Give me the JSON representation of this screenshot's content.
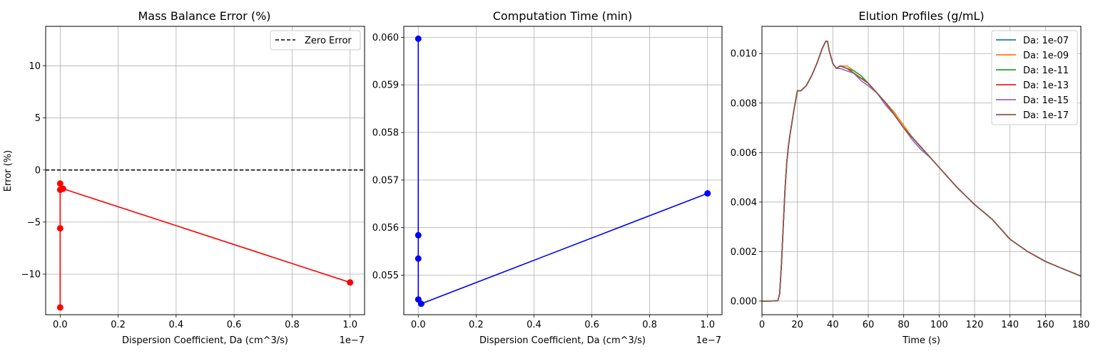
{
  "chart_data": [
    {
      "type": "line",
      "title": "Mass Balance Error (%)",
      "xlabel": "Dispersion Coefficient, Da (cm^3/s)",
      "ylabel": "Error (%)",
      "x_offset_label": "1e−7",
      "xlim": [
        -0.05,
        1.05
      ],
      "ylim": [
        -13.9,
        13.8
      ],
      "xticks": [
        0.0,
        0.2,
        0.4,
        0.6,
        0.8,
        1.0
      ],
      "xtick_labels": [
        "0.0",
        "0.2",
        "0.4",
        "0.6",
        "0.8",
        "1.0"
      ],
      "yticks": [
        -10,
        -5,
        0,
        5,
        10
      ],
      "ytick_labels": [
        "−10",
        "−5",
        "0",
        "5",
        "10"
      ],
      "grid": true,
      "legend": {
        "position": "upper-right",
        "entries": [
          "Zero Error"
        ]
      },
      "series": [
        {
          "color": "#ff0000",
          "marker": "circle",
          "x": [
            1.0,
            0.01,
            0.0001,
            1e-06,
            1e-08,
            1e-10
          ],
          "y": [
            -10.8,
            -1.8,
            -1.9,
            -1.3,
            -5.6,
            -13.2
          ]
        }
      ],
      "reference_line": {
        "name": "Zero Error",
        "y": 0,
        "color": "#000000",
        "style": "dashed"
      }
    },
    {
      "type": "line",
      "title": "Computation Time (min)",
      "xlabel": "Dispersion Coefficient, Da (cm^3/s)",
      "ylabel": "",
      "x_offset_label": "1e−7",
      "xlim": [
        -0.05,
        1.05
      ],
      "ylim": [
        0.05417,
        0.06023
      ],
      "xticks": [
        0.0,
        0.2,
        0.4,
        0.6,
        0.8,
        1.0
      ],
      "xtick_labels": [
        "0.0",
        "0.2",
        "0.4",
        "0.6",
        "0.8",
        "1.0"
      ],
      "yticks": [
        0.055,
        0.056,
        0.057,
        0.058,
        0.059,
        0.06
      ],
      "ytick_labels": [
        "0.055",
        "0.056",
        "0.057",
        "0.058",
        "0.059",
        "0.060"
      ],
      "grid": true,
      "series": [
        {
          "color": "#0000ff",
          "marker": "circle",
          "x": [
            1.0,
            0.01,
            0.0001,
            1e-06,
            1e-08,
            1e-10
          ],
          "y": [
            0.05672,
            0.0544,
            0.05449,
            0.05535,
            0.05584,
            0.05997
          ]
        }
      ]
    },
    {
      "type": "line",
      "title": "Elution Profiles (g/mL)",
      "xlabel": "Time (s)",
      "ylabel": "",
      "xlim": [
        0,
        180
      ],
      "ylim": [
        -0.00055,
        0.0111
      ],
      "xticks": [
        0,
        20,
        40,
        60,
        80,
        100,
        120,
        140,
        160,
        180
      ],
      "xtick_labels": [
        "0",
        "20",
        "40",
        "60",
        "80",
        "100",
        "120",
        "140",
        "160",
        "180"
      ],
      "yticks": [
        0.0,
        0.002,
        0.004,
        0.006,
        0.008,
        0.01
      ],
      "ytick_labels": [
        "0.000",
        "0.002",
        "0.004",
        "0.006",
        "0.008",
        "0.010"
      ],
      "grid": true,
      "legend": {
        "position": "upper-right"
      },
      "x": [
        0,
        5,
        9,
        10,
        11,
        12,
        13,
        14,
        15,
        16,
        18,
        20,
        22,
        25,
        28,
        31,
        34,
        36,
        37,
        38,
        40,
        42,
        44,
        48,
        52,
        56,
        60,
        65,
        70,
        75,
        80,
        85,
        90,
        95,
        100,
        110,
        120,
        130,
        140,
        150,
        160,
        170,
        180
      ],
      "series": [
        {
          "name": "Da: 1e-07",
          "color": "#1f77b4",
          "values": [
            0,
            0,
            2e-05,
            0.0003,
            0.0015,
            0.003,
            0.0045,
            0.0056,
            0.0063,
            0.0068,
            0.0077,
            0.0085,
            0.0085,
            0.0087,
            0.0091,
            0.0096,
            0.0102,
            0.0105,
            0.0105,
            0.0101,
            0.0096,
            0.0094,
            0.0095,
            0.0094,
            0.0092,
            0.009,
            0.0088,
            0.0084,
            0.008,
            0.0075,
            0.007,
            0.0066,
            0.0062,
            0.0058,
            0.0054,
            0.0046,
            0.0039,
            0.0033,
            0.0025,
            0.002,
            0.0016,
            0.0013,
            0.00101
          ]
        },
        {
          "name": "Da: 1e-09",
          "color": "#ff7f0e",
          "values": [
            0,
            0,
            2e-05,
            0.0003,
            0.0015,
            0.003,
            0.0045,
            0.0056,
            0.0063,
            0.0068,
            0.0077,
            0.0085,
            0.0085,
            0.0087,
            0.0091,
            0.0096,
            0.0102,
            0.0105,
            0.0105,
            0.0101,
            0.0096,
            0.0094,
            0.0095,
            0.0095,
            0.0093,
            0.0091,
            0.0088,
            0.0084,
            0.008,
            0.0076,
            0.0071,
            0.0066,
            0.0062,
            0.0058,
            0.0054,
            0.0046,
            0.0039,
            0.0033,
            0.0025,
            0.002,
            0.0016,
            0.0013,
            0.00101
          ]
        },
        {
          "name": "Da: 1e-11",
          "color": "#2ca02c",
          "values": [
            0,
            0,
            2e-05,
            0.0003,
            0.0015,
            0.003,
            0.0045,
            0.0056,
            0.0063,
            0.0068,
            0.0077,
            0.0085,
            0.0085,
            0.0087,
            0.0091,
            0.0096,
            0.0102,
            0.0105,
            0.0105,
            0.0101,
            0.0096,
            0.0094,
            0.0095,
            0.0094,
            0.0093,
            0.0091,
            0.0088,
            0.0084,
            0.008,
            0.0075,
            0.007,
            0.0066,
            0.0062,
            0.0058,
            0.0054,
            0.0046,
            0.0039,
            0.0033,
            0.0025,
            0.002,
            0.0016,
            0.0013,
            0.00101
          ]
        },
        {
          "name": "Da: 1e-13",
          "color": "#d62728",
          "values": [
            0,
            0,
            2e-05,
            0.0003,
            0.0015,
            0.003,
            0.0045,
            0.0056,
            0.0063,
            0.0068,
            0.0077,
            0.0085,
            0.0085,
            0.0087,
            0.0091,
            0.0096,
            0.0102,
            0.0105,
            0.0105,
            0.0101,
            0.0096,
            0.0094,
            0.0095,
            0.0094,
            0.0092,
            0.009,
            0.0088,
            0.0084,
            0.008,
            0.0075,
            0.007,
            0.0066,
            0.0062,
            0.0058,
            0.0054,
            0.0046,
            0.0039,
            0.0033,
            0.0025,
            0.002,
            0.0016,
            0.0013,
            0.00101
          ]
        },
        {
          "name": "Da: 1e-15",
          "color": "#9467bd",
          "values": [
            0,
            0,
            2e-05,
            0.0003,
            0.0015,
            0.003,
            0.0045,
            0.0056,
            0.0063,
            0.0068,
            0.0077,
            0.0085,
            0.0085,
            0.0087,
            0.0091,
            0.0096,
            0.0102,
            0.0105,
            0.0105,
            0.0101,
            0.0096,
            0.0094,
            0.0094,
            0.0093,
            0.0092,
            0.0089,
            0.0087,
            0.0084,
            0.0079,
            0.0075,
            0.007,
            0.0065,
            0.0061,
            0.0058,
            0.0054,
            0.0046,
            0.0039,
            0.0033,
            0.0025,
            0.002,
            0.0016,
            0.0013,
            0.00101
          ]
        },
        {
          "name": "Da: 1e-17",
          "color": "#8c564b",
          "values": [
            0,
            0,
            2e-05,
            0.0003,
            0.0015,
            0.003,
            0.0045,
            0.0056,
            0.0063,
            0.0068,
            0.0077,
            0.0085,
            0.0085,
            0.0087,
            0.0091,
            0.0096,
            0.0102,
            0.0105,
            0.0105,
            0.0101,
            0.0096,
            0.0094,
            0.0095,
            0.0094,
            0.0092,
            0.009,
            0.0088,
            0.0084,
            0.008,
            0.0075,
            0.007,
            0.0066,
            0.0062,
            0.0058,
            0.0054,
            0.0046,
            0.0039,
            0.0033,
            0.0025,
            0.002,
            0.0016,
            0.0013,
            0.00101
          ]
        }
      ]
    }
  ]
}
